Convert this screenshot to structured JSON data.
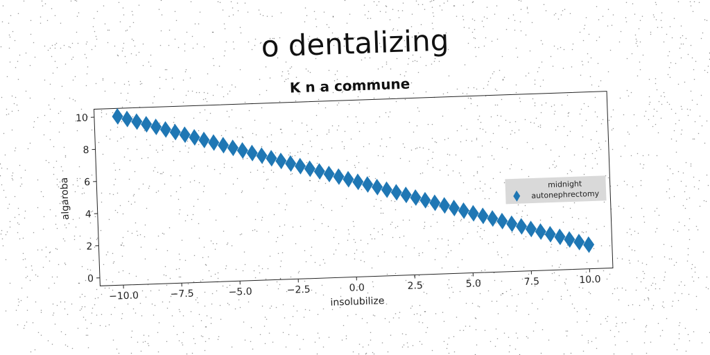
{
  "suptitle": "o dentalizing",
  "chart_data": {
    "type": "scatter",
    "title": "K n a commune",
    "xlabel": "insolubilize",
    "ylabel": "algaroba",
    "xlim": [
      -11,
      11
    ],
    "ylim": [
      -0.5,
      10.5
    ],
    "x_ticks": [
      -10.0,
      -7.5,
      -5.0,
      -2.5,
      0.0,
      2.5,
      5.0,
      7.5,
      10.0
    ],
    "x_tick_labels": [
      "−10.0",
      "−7.5",
      "−5.0",
      "−2.5",
      "0.0",
      "2.5",
      "5.0",
      "7.5",
      "10.0"
    ],
    "y_ticks": [
      0,
      2,
      4,
      6,
      8,
      10
    ],
    "y_tick_labels": [
      "0",
      "2",
      "4",
      "6",
      "8",
      "10"
    ],
    "legend_position": "center-right",
    "series": [
      {
        "name": "midnight\nautonephrectomy",
        "marker": "thin-diamond",
        "color": "#1f77b4",
        "x_start": -10.0,
        "x_end": 10.0,
        "count": 50,
        "y_start": 10.0,
        "y_end": 1.0
      }
    ]
  }
}
